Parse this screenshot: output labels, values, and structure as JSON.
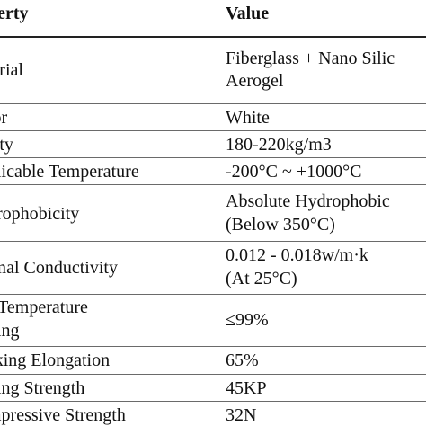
{
  "table": {
    "header": {
      "property": "operty",
      "value": "Value"
    },
    "rows": [
      {
        "property": "aterial",
        "value": [
          "Fiberglass + Nano Silic",
          "Aerogel"
        ]
      },
      {
        "property": "olor",
        "value": [
          "White"
        ]
      },
      {
        "property": "nsity",
        "value": [
          "180-220kg/m3"
        ]
      },
      {
        "property": "oplicable Temperature",
        "value": [
          "-200°C ~ +1000°C"
        ]
      },
      {
        "property": "ydrophobicity",
        "value": [
          "Absolute Hydrophobic",
          "(Below 350°C)"
        ]
      },
      {
        "property": "ermal Conductivity",
        "value": [
          "0.012 - 0.018w/m·k",
          " (At 25°C)"
        ]
      },
      {
        "property": [
          "w-Temperature",
          "nding"
        ],
        "value": [
          "≤99%"
        ]
      },
      {
        "property": "eaking Elongation",
        "value": [
          "65%"
        ]
      },
      {
        "property": "nding Strength",
        "value": [
          "45KP"
        ]
      },
      {
        "property": "ompressive Strength",
        "value": [
          "32N"
        ]
      }
    ]
  }
}
